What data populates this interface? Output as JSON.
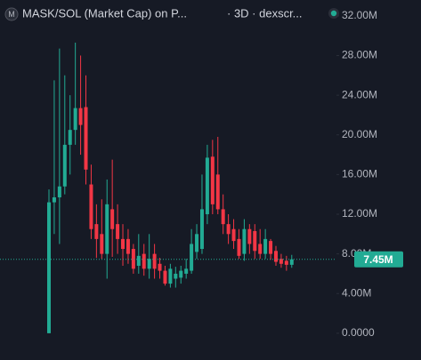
{
  "chart_data": {
    "type": "candlestick",
    "title": "MASK/SOL (Market Cap) on P...",
    "subtitle": "· 3D · dexscr...",
    "up_color": "#22ab94",
    "down_color": "#f23645",
    "ylim": [
      -2700000,
      33600000
    ],
    "yticks": [
      {
        "value": 0,
        "label": "0.0000"
      },
      {
        "value": 4000000,
        "label": "4.00M"
      },
      {
        "value": 8000000,
        "label": "8.00M"
      },
      {
        "value": 12000000,
        "label": "12.00M"
      },
      {
        "value": 16000000,
        "label": "16.00M"
      },
      {
        "value": 20000000,
        "label": "20.00M"
      },
      {
        "value": 24000000,
        "label": "24.00M"
      },
      {
        "value": 28000000,
        "label": "28.00M"
      },
      {
        "value": 32000000,
        "label": "32.00M"
      }
    ],
    "last_price": {
      "value": 7450000,
      "label": "7.45M"
    },
    "open": [
      0,
      13200000,
      13700000,
      14800000,
      19000000,
      20500000,
      22700000,
      22800000,
      15000000,
      11000000,
      10000000,
      8000000,
      12500000,
      11000000,
      9500000,
      9500000,
      8500000,
      6800000,
      8000000,
      6500000,
      8000000,
      7000000,
      6300000,
      5000000,
      5500000,
      5600000,
      6000000,
      6300000,
      8200000,
      8500000,
      12000000,
      17800000,
      16000000,
      12500000,
      11000000,
      10500000,
      9500000,
      8000000,
      10500000,
      10300000,
      9000000,
      8000000,
      9300000,
      8300000,
      7500000,
      7300000,
      6900000
    ],
    "high": [
      14500000,
      25500000,
      28700000,
      26000000,
      24000000,
      29300000,
      28000000,
      26000000,
      17000000,
      13000000,
      13500000,
      15500000,
      17500000,
      13000000,
      11000000,
      10500000,
      9000000,
      10000000,
      9000000,
      10000000,
      9000000,
      7600000,
      6800000,
      7000000,
      6700000,
      6800000,
      7500000,
      10500000,
      11000000,
      16000000,
      19000000,
      19500000,
      19800000,
      14000000,
      12000000,
      11500000,
      10500000,
      11500000,
      11000000,
      11000000,
      10500000,
      10500000,
      9500000,
      8800000,
      8000000,
      7800000,
      7900000
    ],
    "low": [
      0,
      10000000,
      9000000,
      14000000,
      16000000,
      19000000,
      18000000,
      15000000,
      9500000,
      7600000,
      7500000,
      5500000,
      7700000,
      8000000,
      6800000,
      7000000,
      6000000,
      6000000,
      5800000,
      5500000,
      5500000,
      5500000,
      4800000,
      4600000,
      4600000,
      5000000,
      5500000,
      6000000,
      7500000,
      8000000,
      11000000,
      12000000,
      12000000,
      10000000,
      9000000,
      8500000,
      7500000,
      7300000,
      8000000,
      7500000,
      7500000,
      7500000,
      7400000,
      6800000,
      6600000,
      6300000,
      6600000
    ],
    "close": [
      13200000,
      13700000,
      14800000,
      19000000,
      20500000,
      22700000,
      21000000,
      16500000,
      10500000,
      9500000,
      8000000,
      13000000,
      10500000,
      9500000,
      8500000,
      8000000,
      6500000,
      7800000,
      6500000,
      7500000,
      6500000,
      6300000,
      5000000,
      6500000,
      6000000,
      6300000,
      6500000,
      9000000,
      10000000,
      12500000,
      17700000,
      13000000,
      12500000,
      11000000,
      10000000,
      9300000,
      7800000,
      10500000,
      9000000,
      8300000,
      8000000,
      9500000,
      8000000,
      7200000,
      7000000,
      6900000,
      7450000
    ]
  }
}
